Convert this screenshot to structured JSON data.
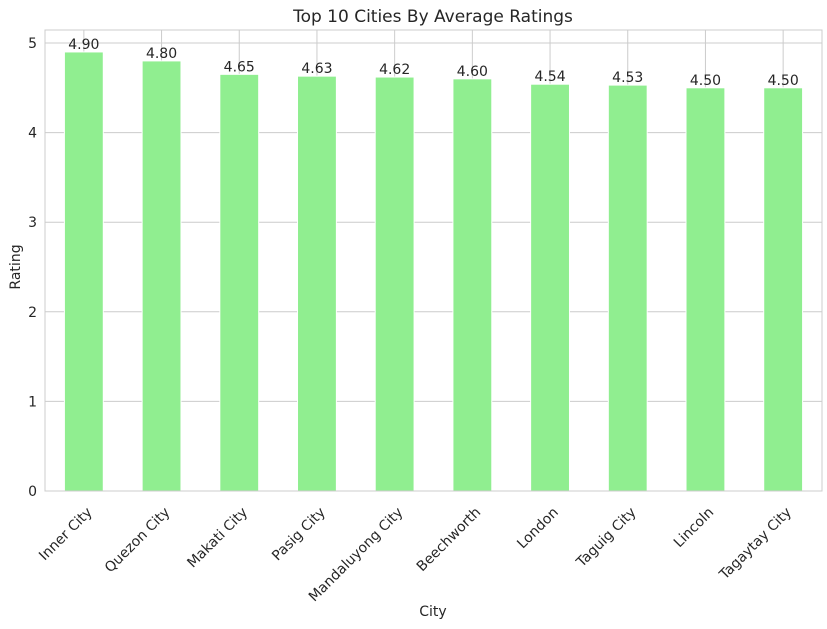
{
  "chart_data": {
    "type": "bar",
    "title": "Top 10 Cities By Average Ratings",
    "xlabel": "City",
    "ylabel": "Rating",
    "categories": [
      "Inner City",
      "Quezon City",
      "Makati City",
      "Pasig City",
      "Mandaluyong City",
      "Beechworth",
      "London",
      "Taguig City",
      "Lincoln",
      "Tagaytay City"
    ],
    "values": [
      4.9,
      4.8,
      4.65,
      4.63,
      4.62,
      4.6,
      4.54,
      4.53,
      4.5,
      4.5
    ],
    "data_labels": [
      "4.90",
      "4.80",
      "4.65",
      "4.63",
      "4.62",
      "4.60",
      "4.54",
      "4.53",
      "4.50",
      "4.50"
    ],
    "yticks": [
      0,
      1,
      2,
      3,
      4,
      5
    ],
    "ylim": [
      0,
      5.145
    ],
    "grid": true,
    "colors": {
      "bar": "#90ee90",
      "bar_edge": "#ffffff",
      "grid": "#cccccc",
      "axis": "#cccccc"
    }
  }
}
